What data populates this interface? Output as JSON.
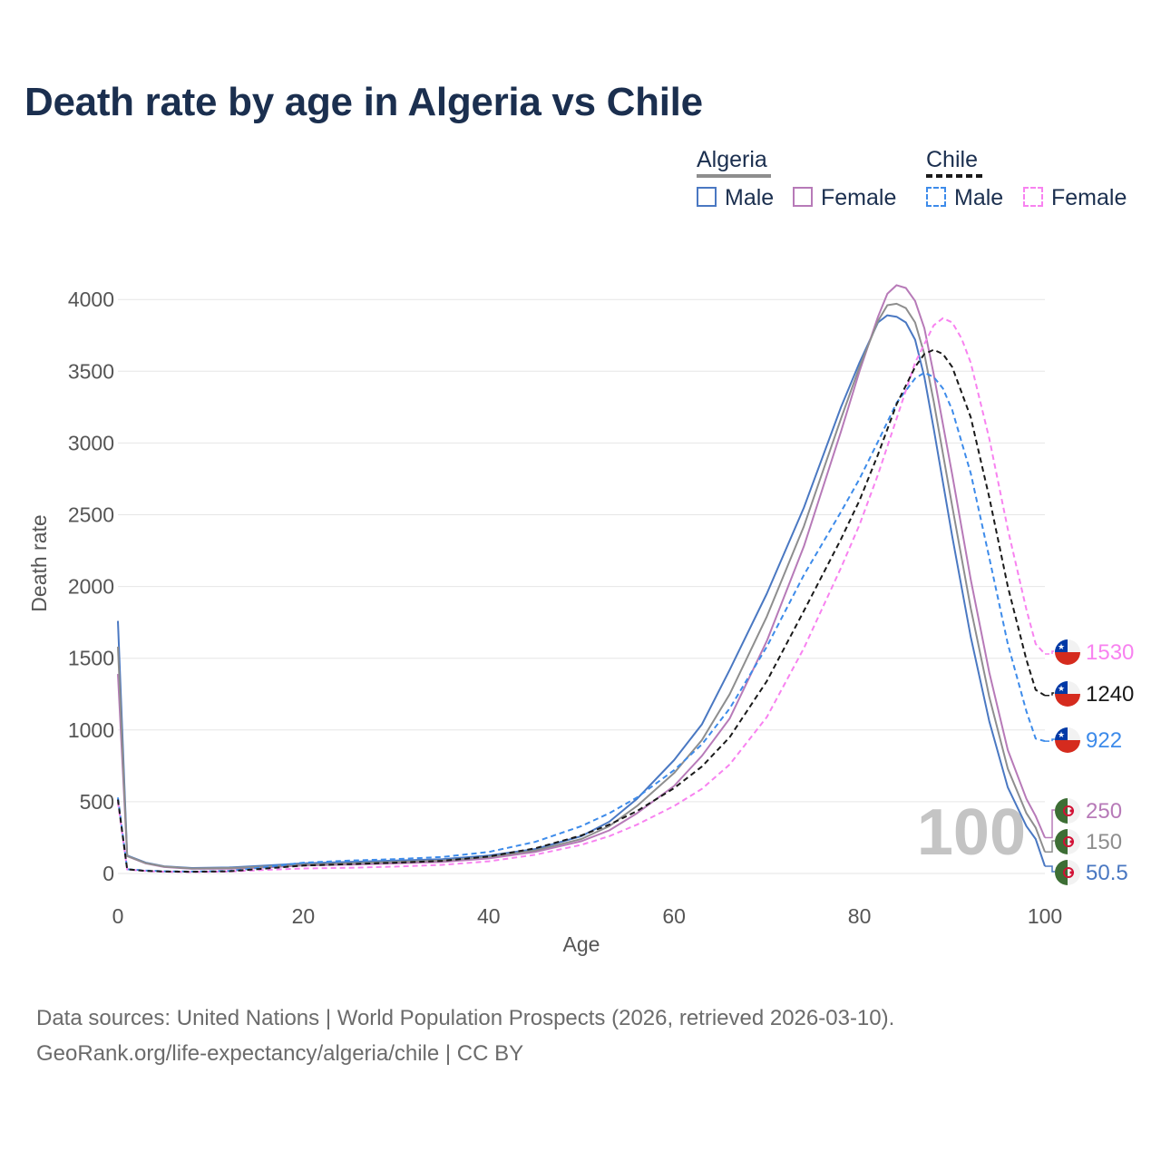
{
  "title": "Death rate by age in Algeria vs Chile",
  "legend": {
    "groups": [
      {
        "name": "Algeria",
        "line_color": "#8e8e8e",
        "dashed": false,
        "items": [
          {
            "label": "Male",
            "color": "#4a78c2"
          },
          {
            "label": "Female",
            "color": "#b77ab8"
          }
        ]
      },
      {
        "name": "Chile",
        "line_color": "#1a1a1a",
        "dashed": true,
        "items": [
          {
            "label": "Male",
            "color": "#3d8bea"
          },
          {
            "label": "Female",
            "color": "#f882f0"
          }
        ]
      }
    ]
  },
  "chart_data": {
    "type": "line",
    "title": "Death rate by age in Algeria vs Chile",
    "xlabel": "Age",
    "ylabel": "Death rate",
    "xlim": [
      0,
      100
    ],
    "ylim": [
      0,
      4200
    ],
    "xticks": [
      0,
      20,
      40,
      60,
      80,
      100
    ],
    "yticks": [
      0,
      500,
      1000,
      1500,
      2000,
      2500,
      3000,
      3500,
      4000
    ],
    "grid": true,
    "annotation": "100",
    "series": [
      {
        "name": "Algeria Male",
        "country": "Algeria",
        "sex": "Male",
        "color": "#4a78c2",
        "dashed": false,
        "end_label": "50.5",
        "points": [
          [
            0,
            1760
          ],
          [
            1,
            125
          ],
          [
            3,
            75
          ],
          [
            5,
            50
          ],
          [
            8,
            38
          ],
          [
            12,
            42
          ],
          [
            16,
            55
          ],
          [
            20,
            70
          ],
          [
            25,
            80
          ],
          [
            30,
            90
          ],
          [
            35,
            100
          ],
          [
            40,
            125
          ],
          [
            45,
            170
          ],
          [
            50,
            260
          ],
          [
            53,
            360
          ],
          [
            56,
            520
          ],
          [
            60,
            790
          ],
          [
            63,
            1040
          ],
          [
            66,
            1420
          ],
          [
            70,
            1950
          ],
          [
            74,
            2550
          ],
          [
            78,
            3250
          ],
          [
            80,
            3560
          ],
          [
            82,
            3840
          ],
          [
            83,
            3890
          ],
          [
            84,
            3880
          ],
          [
            85,
            3840
          ],
          [
            86,
            3720
          ],
          [
            87,
            3460
          ],
          [
            88,
            3100
          ],
          [
            90,
            2350
          ],
          [
            92,
            1650
          ],
          [
            94,
            1060
          ],
          [
            96,
            600
          ],
          [
            98,
            330
          ],
          [
            99,
            240
          ],
          [
            100,
            50.5
          ]
        ]
      },
      {
        "name": "Algeria Female",
        "country": "Algeria",
        "sex": "Female",
        "color": "#b77ab8",
        "dashed": false,
        "end_label": "250",
        "points": [
          [
            0,
            1390
          ],
          [
            1,
            120
          ],
          [
            3,
            70
          ],
          [
            5,
            45
          ],
          [
            8,
            32
          ],
          [
            12,
            33
          ],
          [
            16,
            42
          ],
          [
            20,
            55
          ],
          [
            25,
            62
          ],
          [
            30,
            70
          ],
          [
            35,
            80
          ],
          [
            40,
            105
          ],
          [
            45,
            150
          ],
          [
            50,
            225
          ],
          [
            53,
            300
          ],
          [
            56,
            420
          ],
          [
            60,
            610
          ],
          [
            63,
            820
          ],
          [
            66,
            1080
          ],
          [
            70,
            1620
          ],
          [
            74,
            2280
          ],
          [
            78,
            3080
          ],
          [
            80,
            3500
          ],
          [
            82,
            3880
          ],
          [
            83,
            4040
          ],
          [
            84,
            4100
          ],
          [
            85,
            4080
          ],
          [
            86,
            3990
          ],
          [
            87,
            3800
          ],
          [
            88,
            3480
          ],
          [
            90,
            2780
          ],
          [
            92,
            2050
          ],
          [
            94,
            1400
          ],
          [
            96,
            860
          ],
          [
            98,
            520
          ],
          [
            99,
            400
          ],
          [
            100,
            250
          ]
        ]
      },
      {
        "name": "Algeria Total",
        "country": "Algeria",
        "sex": "Total",
        "color": "#8e8e8e",
        "dashed": false,
        "end_label": "150",
        "points": [
          [
            0,
            1580
          ],
          [
            1,
            122
          ],
          [
            3,
            72
          ],
          [
            5,
            48
          ],
          [
            8,
            35
          ],
          [
            12,
            38
          ],
          [
            16,
            48
          ],
          [
            20,
            62
          ],
          [
            25,
            70
          ],
          [
            30,
            80
          ],
          [
            35,
            90
          ],
          [
            40,
            115
          ],
          [
            45,
            160
          ],
          [
            50,
            240
          ],
          [
            53,
            330
          ],
          [
            56,
            470
          ],
          [
            60,
            700
          ],
          [
            63,
            930
          ],
          [
            66,
            1250
          ],
          [
            70,
            1790
          ],
          [
            74,
            2420
          ],
          [
            78,
            3170
          ],
          [
            80,
            3530
          ],
          [
            82,
            3850
          ],
          [
            83,
            3960
          ],
          [
            84,
            3970
          ],
          [
            85,
            3940
          ],
          [
            86,
            3840
          ],
          [
            87,
            3620
          ],
          [
            88,
            3290
          ],
          [
            90,
            2560
          ],
          [
            92,
            1850
          ],
          [
            94,
            1230
          ],
          [
            96,
            730
          ],
          [
            98,
            420
          ],
          [
            99,
            320
          ],
          [
            100,
            150
          ]
        ]
      },
      {
        "name": "Chile Male",
        "country": "Chile",
        "sex": "Male",
        "color": "#3d8bea",
        "dashed": true,
        "end_label": "922",
        "points": [
          [
            0,
            530
          ],
          [
            1,
            30
          ],
          [
            3,
            20
          ],
          [
            5,
            15
          ],
          [
            8,
            13
          ],
          [
            12,
            18
          ],
          [
            16,
            45
          ],
          [
            20,
            75
          ],
          [
            25,
            90
          ],
          [
            30,
            100
          ],
          [
            35,
            115
          ],
          [
            40,
            150
          ],
          [
            45,
            220
          ],
          [
            50,
            330
          ],
          [
            53,
            420
          ],
          [
            56,
            530
          ],
          [
            60,
            720
          ],
          [
            63,
            900
          ],
          [
            66,
            1150
          ],
          [
            70,
            1580
          ],
          [
            74,
            2080
          ],
          [
            78,
            2520
          ],
          [
            80,
            2750
          ],
          [
            82,
            3010
          ],
          [
            84,
            3280
          ],
          [
            86,
            3450
          ],
          [
            87,
            3490
          ],
          [
            88,
            3460
          ],
          [
            89,
            3380
          ],
          [
            90,
            3230
          ],
          [
            92,
            2790
          ],
          [
            94,
            2200
          ],
          [
            96,
            1600
          ],
          [
            98,
            1130
          ],
          [
            99,
            940
          ],
          [
            100,
            922
          ]
        ]
      },
      {
        "name": "Chile Female",
        "country": "Chile",
        "sex": "Female",
        "color": "#f882f0",
        "dashed": true,
        "end_label": "1530",
        "points": [
          [
            0,
            500
          ],
          [
            1,
            28
          ],
          [
            3,
            17
          ],
          [
            5,
            12
          ],
          [
            8,
            10
          ],
          [
            12,
            13
          ],
          [
            16,
            25
          ],
          [
            20,
            35
          ],
          [
            25,
            40
          ],
          [
            30,
            48
          ],
          [
            35,
            60
          ],
          [
            40,
            85
          ],
          [
            45,
            130
          ],
          [
            50,
            200
          ],
          [
            53,
            260
          ],
          [
            56,
            340
          ],
          [
            60,
            470
          ],
          [
            63,
            590
          ],
          [
            66,
            760
          ],
          [
            70,
            1090
          ],
          [
            74,
            1570
          ],
          [
            78,
            2130
          ],
          [
            80,
            2430
          ],
          [
            82,
            2780
          ],
          [
            84,
            3170
          ],
          [
            86,
            3560
          ],
          [
            88,
            3820
          ],
          [
            89,
            3870
          ],
          [
            90,
            3840
          ],
          [
            91,
            3730
          ],
          [
            92,
            3560
          ],
          [
            94,
            3030
          ],
          [
            96,
            2400
          ],
          [
            98,
            1840
          ],
          [
            99,
            1600
          ],
          [
            100,
            1530
          ]
        ]
      },
      {
        "name": "Chile Total",
        "country": "Chile",
        "sex": "Total",
        "color": "#1a1a1a",
        "dashed": true,
        "end_label": "1240",
        "points": [
          [
            0,
            515
          ],
          [
            1,
            29
          ],
          [
            3,
            18
          ],
          [
            5,
            14
          ],
          [
            8,
            12
          ],
          [
            12,
            15
          ],
          [
            16,
            35
          ],
          [
            20,
            55
          ],
          [
            25,
            65
          ],
          [
            30,
            75
          ],
          [
            35,
            88
          ],
          [
            40,
            118
          ],
          [
            45,
            175
          ],
          [
            50,
            265
          ],
          [
            53,
            340
          ],
          [
            56,
            435
          ],
          [
            60,
            595
          ],
          [
            63,
            745
          ],
          [
            66,
            950
          ],
          [
            70,
            1340
          ],
          [
            74,
            1830
          ],
          [
            78,
            2330
          ],
          [
            80,
            2600
          ],
          [
            82,
            2920
          ],
          [
            84,
            3270
          ],
          [
            86,
            3530
          ],
          [
            87,
            3620
          ],
          [
            88,
            3650
          ],
          [
            89,
            3620
          ],
          [
            90,
            3530
          ],
          [
            92,
            3180
          ],
          [
            94,
            2620
          ],
          [
            96,
            2000
          ],
          [
            98,
            1490
          ],
          [
            99,
            1280
          ],
          [
            100,
            1240
          ]
        ]
      }
    ]
  },
  "footer": {
    "line1": "Data sources: United Nations | World Population Prospects (2026, retrieved 2026-03-10).",
    "line2": "GeoRank.org/life-expectancy/algeria/chile | CC BY"
  }
}
